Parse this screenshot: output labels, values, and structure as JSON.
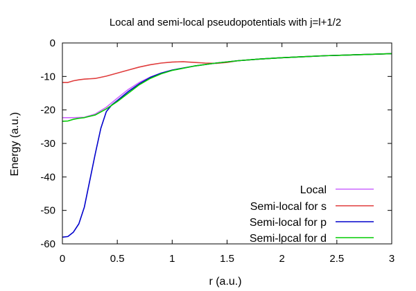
{
  "chart_data": {
    "type": "line",
    "title": "Local and semi-local pseudopotentials with j=l+1/2",
    "xlabel": "r (a.u.)",
    "ylabel": "Energy (a.u.)",
    "xlim": [
      0,
      3
    ],
    "ylim": [
      -60,
      0
    ],
    "xticks": [
      0,
      0.5,
      1,
      1.5,
      2,
      2.5,
      3
    ],
    "xtick_labels": [
      "0",
      "0.5",
      "1",
      "1.5",
      "2",
      "2.5",
      "3"
    ],
    "yticks": [
      0,
      -10,
      -20,
      -30,
      -40,
      -50,
      -60
    ],
    "ytick_labels": [
      "0",
      "-10",
      "-20",
      "-30",
      "-40",
      "-50",
      "-60"
    ],
    "grid": false,
    "legend_position": "bottom-right",
    "series": [
      {
        "name": "Local",
        "color": "#cc66ff",
        "x": [
          0,
          0.1,
          0.2,
          0.3,
          0.4,
          0.5,
          0.6,
          0.7,
          0.8,
          0.9,
          1.0,
          1.2,
          1.4,
          1.6,
          1.8,
          2.0,
          2.2,
          2.4,
          2.6,
          2.8,
          3.0
        ],
        "y": [
          -22.3,
          -22.3,
          -22.2,
          -21.2,
          -19.2,
          -16.5,
          -13.9,
          -11.8,
          -10.2,
          -9.0,
          -8.1,
          -6.9,
          -6.0,
          -5.3,
          -4.8,
          -4.4,
          -4.1,
          -3.8,
          -3.6,
          -3.4,
          -3.2
        ]
      },
      {
        "name": "Semi-local for s",
        "color": "#e03c3c",
        "x": [
          0,
          0.05,
          0.1,
          0.15,
          0.2,
          0.3,
          0.4,
          0.5,
          0.6,
          0.7,
          0.8,
          0.9,
          1.0,
          1.1,
          1.2,
          1.3,
          1.4,
          1.5,
          1.6,
          1.8,
          2.0,
          2.2,
          2.4,
          2.6,
          2.8,
          3.0
        ],
        "y": [
          -11.8,
          -11.8,
          -11.3,
          -11.0,
          -10.8,
          -10.6,
          -9.9,
          -9.0,
          -8.1,
          -7.2,
          -6.5,
          -6.0,
          -5.7,
          -5.6,
          -5.8,
          -6.0,
          -6.1,
          -5.8,
          -5.3,
          -4.8,
          -4.4,
          -4.1,
          -3.8,
          -3.6,
          -3.4,
          -3.2
        ]
      },
      {
        "name": "Semi-local for p",
        "color": "#0000cc",
        "x": [
          0,
          0.05,
          0.1,
          0.15,
          0.2,
          0.25,
          0.3,
          0.35,
          0.4,
          0.45,
          0.5,
          0.6,
          0.7,
          0.8,
          0.9,
          1.0,
          1.2,
          1.4,
          1.6,
          1.8,
          2.0,
          2.2,
          2.4,
          2.6,
          2.8,
          3.0
        ],
        "y": [
          -58.0,
          -57.8,
          -56.5,
          -54.0,
          -49.0,
          -41.0,
          -33.0,
          -25.5,
          -20.5,
          -18.5,
          -17.2,
          -14.5,
          -12.2,
          -10.3,
          -9.0,
          -8.1,
          -6.9,
          -6.0,
          -5.3,
          -4.8,
          -4.4,
          -4.1,
          -3.8,
          -3.6,
          -3.4,
          -3.2
        ]
      },
      {
        "name": "Semi-local for d",
        "color": "#00cc00",
        "x": [
          0,
          0.05,
          0.1,
          0.15,
          0.2,
          0.3,
          0.4,
          0.5,
          0.6,
          0.7,
          0.8,
          0.9,
          1.0,
          1.2,
          1.4,
          1.6,
          1.8,
          2.0,
          2.2,
          2.4,
          2.6,
          2.8,
          3.0
        ],
        "y": [
          -23.4,
          -23.3,
          -22.8,
          -22.5,
          -22.3,
          -21.5,
          -19.7,
          -17.5,
          -15.0,
          -12.5,
          -10.6,
          -9.2,
          -8.2,
          -6.9,
          -6.0,
          -5.3,
          -4.8,
          -4.4,
          -4.1,
          -3.8,
          -3.6,
          -3.4,
          -3.2
        ]
      }
    ]
  }
}
